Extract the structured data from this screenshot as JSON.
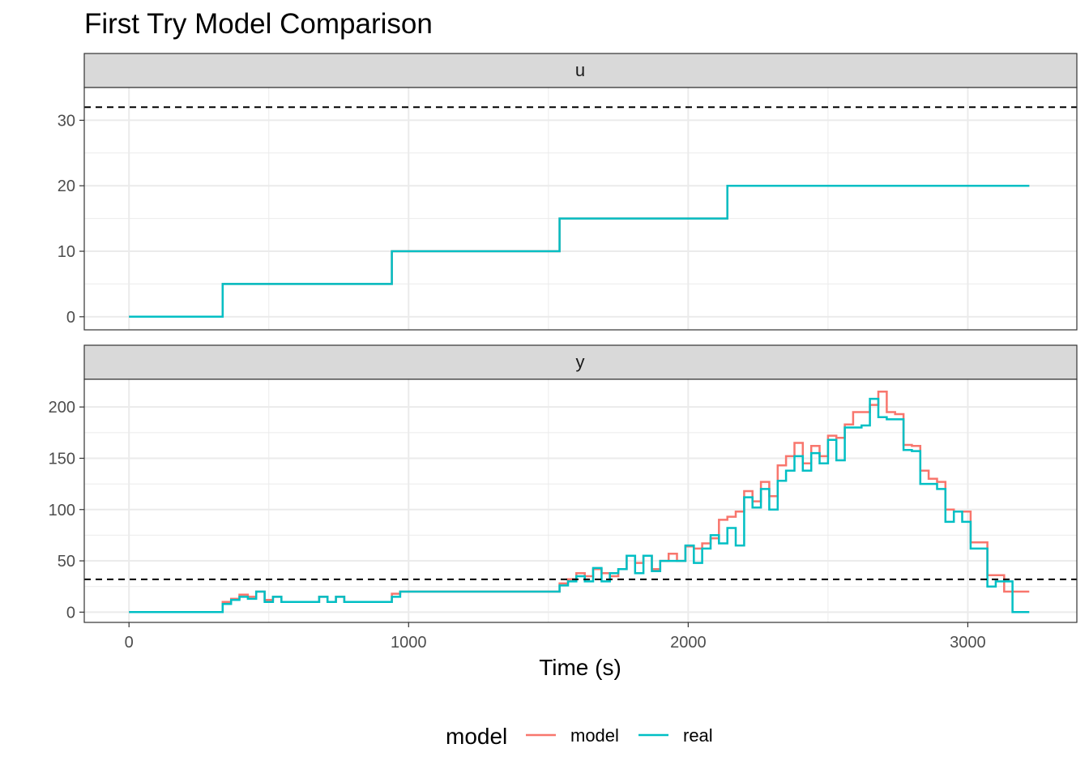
{
  "chart_data": {
    "type": "line",
    "title": "First Try Model Comparison",
    "xlabel": "Time (s)",
    "xlim": [
      -160,
      3390
    ],
    "x_ticks": [
      0,
      1000,
      2000,
      3000
    ],
    "x_tick_labels": [
      "0",
      "1000",
      "2000",
      "3000"
    ],
    "grid": true,
    "legend": {
      "title": "model",
      "position": "bottom",
      "entries": [
        "model",
        "real"
      ]
    },
    "colors": {
      "model": "#F8766D",
      "real": "#00BFC4",
      "hline": "#000000",
      "strip_bg": "#D9D9D9",
      "grid": "#EBEBEB"
    },
    "panels": [
      {
        "strip": "u",
        "ylim": [
          -2,
          35
        ],
        "y_ticks": [
          0,
          10,
          20,
          30
        ],
        "y_tick_labels": [
          "0",
          "10",
          "20",
          "30"
        ],
        "hline": 32,
        "series": [
          {
            "name": "model",
            "step": true,
            "x": [
              0,
              335,
              940,
              1540,
              2140,
              3220
            ],
            "y": [
              0,
              5,
              10,
              15,
              20,
              20
            ]
          },
          {
            "name": "real",
            "step": true,
            "x": [
              0,
              335,
              940,
              1540,
              2140,
              3220
            ],
            "y": [
              0,
              5,
              10,
              15,
              20,
              20
            ]
          }
        ]
      },
      {
        "strip": "y",
        "ylim": [
          -10,
          227
        ],
        "y_ticks": [
          0,
          50,
          100,
          150,
          200
        ],
        "y_tick_labels": [
          "0",
          "50",
          "100",
          "150",
          "200"
        ],
        "hline": 32,
        "series": [
          {
            "name": "model",
            "step": true,
            "x": [
              0,
              335,
              365,
              395,
              425,
              455,
              485,
              515,
              545,
              575,
              680,
              710,
              740,
              770,
              940,
              970,
              1540,
              1570,
              1600,
              1630,
              1660,
              1690,
              1720,
              1750,
              1780,
              1810,
              1840,
              1870,
              1900,
              1930,
              1960,
              1990,
              2020,
              2050,
              2080,
              2110,
              2140,
              2170,
              2200,
              2230,
              2260,
              2290,
              2320,
              2350,
              2380,
              2410,
              2440,
              2470,
              2500,
              2530,
              2560,
              2590,
              2620,
              2650,
              2680,
              2710,
              2740,
              2770,
              2800,
              2830,
              2860,
              2890,
              2920,
              2950,
              2980,
              3010,
              3040,
              3070,
              3100,
              3130,
              3160,
              3190,
              3220
            ],
            "y": [
              0,
              10,
              13,
              17,
              15,
              20,
              12,
              15,
              10,
              10,
              15,
              10,
              15,
              10,
              18,
              20,
              28,
              32,
              38,
              35,
              42,
              38,
              35,
              42,
              55,
              48,
              55,
              42,
              50,
              57,
              50,
              64,
              62,
              67,
              72,
              90,
              93,
              98,
              118,
              108,
              127,
              113,
              143,
              152,
              165,
              145,
              162,
              152,
              172,
              170,
              183,
              195,
              195,
              202,
              215,
              195,
              193,
              163,
              162,
              138,
              130,
              127,
              100,
              98,
              98,
              68,
              68,
              36,
              36,
              20,
              20,
              20,
              20
            ]
          },
          {
            "name": "real",
            "step": true,
            "x": [
              0,
              335,
              365,
              395,
              425,
              455,
              485,
              515,
              545,
              575,
              680,
              710,
              740,
              770,
              940,
              970,
              1540,
              1570,
              1600,
              1630,
              1660,
              1690,
              1720,
              1750,
              1780,
              1810,
              1840,
              1870,
              1900,
              1930,
              1960,
              1990,
              2020,
              2050,
              2080,
              2110,
              2140,
              2170,
              2200,
              2230,
              2260,
              2290,
              2320,
              2350,
              2380,
              2410,
              2440,
              2470,
              2500,
              2530,
              2560,
              2590,
              2620,
              2650,
              2680,
              2710,
              2740,
              2770,
              2800,
              2830,
              2860,
              2890,
              2920,
              2950,
              2980,
              3010,
              3040,
              3070,
              3100,
              3130,
              3160,
              3190,
              3220
            ],
            "y": [
              0,
              8,
              12,
              15,
              13,
              20,
              10,
              15,
              10,
              10,
              15,
              10,
              15,
              10,
              15,
              20,
              26,
              30,
              35,
              30,
              43,
              30,
              38,
              42,
              55,
              38,
              55,
              40,
              50,
              50,
              50,
              65,
              48,
              62,
              75,
              67,
              82,
              65,
              112,
              102,
              120,
              100,
              128,
              138,
              152,
              138,
              155,
              145,
              168,
              148,
              180,
              180,
              182,
              208,
              190,
              188,
              188,
              158,
              157,
              125,
              125,
              120,
              88,
              98,
              88,
              62,
              62,
              25,
              30,
              30,
              0,
              0,
              0
            ]
          }
        ]
      }
    ]
  }
}
